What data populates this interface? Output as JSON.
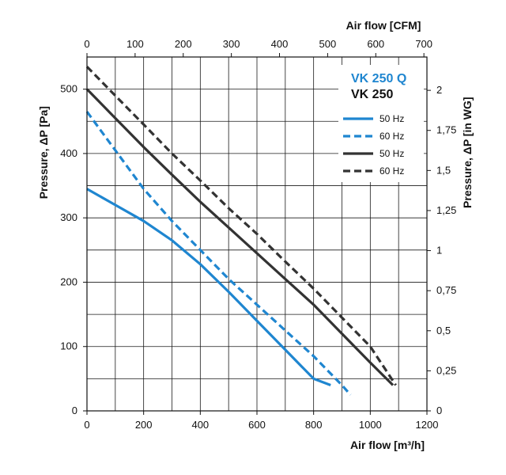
{
  "chart_data": {
    "type": "line",
    "xlabel": "Air flow [m³/h]",
    "ylabel": "Pressure, ΔP [Pa]",
    "x2label": "Air flow [CFM]",
    "y2label": "Pressure, ΔP [in WG]",
    "xlim": [
      0,
      1200
    ],
    "ylim": [
      0,
      550
    ],
    "x_ticks": [
      "0",
      "200",
      "400",
      "600",
      "800",
      "1000",
      "1200"
    ],
    "y_ticks": [
      "0",
      "100",
      "200",
      "300",
      "400",
      "500"
    ],
    "x2_ticks": [
      "0",
      "100",
      "200",
      "300",
      "400",
      "500",
      "600",
      "700"
    ],
    "y2_ticks": [
      "0",
      "0,25",
      "0,5",
      "0,75",
      "1",
      "1,25",
      "1,5",
      "1,75",
      "2"
    ],
    "legend": {
      "group_titles": [
        "VK 250 Q",
        "VK 250"
      ],
      "position": "top-right"
    },
    "colors": {
      "blue": "#1f86d0",
      "black": "#333333",
      "grid": "#1a1a1a"
    },
    "series": [
      {
        "name": "50 Hz",
        "group": "VK 250 Q",
        "color": "#1f86d0",
        "dash": false,
        "points": [
          [
            0,
            345
          ],
          [
            100,
            320
          ],
          [
            200,
            295
          ],
          [
            300,
            265
          ],
          [
            400,
            228
          ],
          [
            500,
            185
          ],
          [
            600,
            140
          ],
          [
            700,
            95
          ],
          [
            800,
            50
          ],
          [
            860,
            40
          ]
        ]
      },
      {
        "name": "60 Hz",
        "group": "VK 250 Q",
        "color": "#1f86d0",
        "dash": true,
        "points": [
          [
            0,
            465
          ],
          [
            100,
            405
          ],
          [
            200,
            345
          ],
          [
            300,
            295
          ],
          [
            400,
            250
          ],
          [
            500,
            205
          ],
          [
            600,
            165
          ],
          [
            700,
            125
          ],
          [
            800,
            85
          ],
          [
            900,
            40
          ],
          [
            930,
            25
          ]
        ]
      },
      {
        "name": "50 Hz",
        "group": "VK 250",
        "color": "#333333",
        "dash": false,
        "points": [
          [
            0,
            500
          ],
          [
            100,
            455
          ],
          [
            200,
            410
          ],
          [
            300,
            367
          ],
          [
            400,
            325
          ],
          [
            500,
            285
          ],
          [
            600,
            245
          ],
          [
            700,
            205
          ],
          [
            800,
            165
          ],
          [
            900,
            120
          ],
          [
            1000,
            75
          ],
          [
            1080,
            40
          ]
        ]
      },
      {
        "name": "60 Hz",
        "group": "VK 250",
        "color": "#333333",
        "dash": true,
        "points": [
          [
            0,
            535
          ],
          [
            100,
            490
          ],
          [
            200,
            445
          ],
          [
            300,
            400
          ],
          [
            400,
            358
          ],
          [
            500,
            315
          ],
          [
            600,
            275
          ],
          [
            700,
            232
          ],
          [
            800,
            190
          ],
          [
            900,
            145
          ],
          [
            1000,
            100
          ],
          [
            1090,
            40
          ]
        ]
      }
    ]
  }
}
